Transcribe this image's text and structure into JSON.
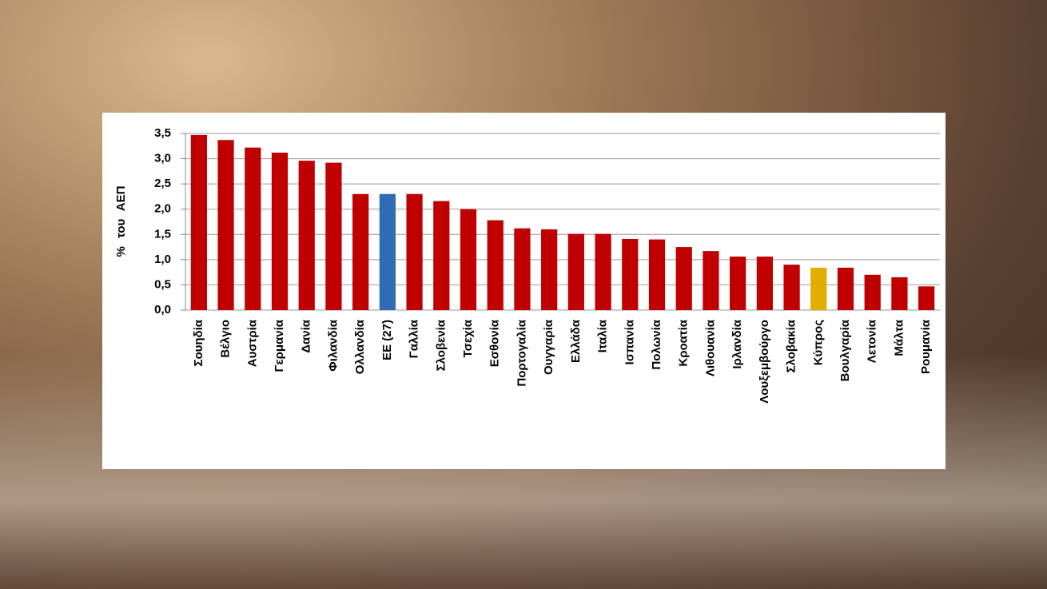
{
  "chart_data": {
    "type": "bar",
    "y_label": "% του ΑΕΠ",
    "categories": [
      "Σουηδία",
      "Βέλγιο",
      "Αυστρία",
      "Γερμανία",
      "Δανία",
      "Φιλανδία",
      "Ολλανδία",
      "ΕΕ (27)",
      "Γαλλία",
      "Σλοβενία",
      "Τσεχία",
      "Εσθονία",
      "Πορτογαλία",
      "Ουγγαρία",
      "Ελλάδα",
      "Ιταλία",
      "Ισπανία",
      "Πολωνία",
      "Κροατία",
      "Λιθουανία",
      "Ιρλανδία",
      "Λουξεμβούργο",
      "Σλοβακία",
      "Κύπρος",
      "Βουλγαρία",
      "Λετονία",
      "Μάλτα",
      "Ρουμανία"
    ],
    "values": [
      3.47,
      3.37,
      3.22,
      3.12,
      2.96,
      2.92,
      2.3,
      2.3,
      2.3,
      2.16,
      2.0,
      1.78,
      1.62,
      1.6,
      1.51,
      1.51,
      1.41,
      1.4,
      1.25,
      1.17,
      1.06,
      1.06,
      0.9,
      0.84,
      0.84,
      0.7,
      0.65,
      0.47
    ],
    "colors": [
      "#c00000",
      "#c00000",
      "#c00000",
      "#c00000",
      "#c00000",
      "#c00000",
      "#c00000",
      "#2e6cb5",
      "#c00000",
      "#c00000",
      "#c00000",
      "#c00000",
      "#c00000",
      "#c00000",
      "#c00000",
      "#c00000",
      "#c00000",
      "#c00000",
      "#c00000",
      "#c00000",
      "#c00000",
      "#c00000",
      "#c00000",
      "#e3ac00",
      "#c00000",
      "#c00000",
      "#c00000",
      "#c00000"
    ],
    "ylim": [
      0,
      3.5
    ],
    "yticks": [
      {
        "value": 0,
        "label": "0,0"
      },
      {
        "value": 0.5,
        "label": "0,5"
      },
      {
        "value": 1,
        "label": "1,0"
      },
      {
        "value": 1.5,
        "label": "1,5"
      },
      {
        "value": 2,
        "label": "2,0"
      },
      {
        "value": 2.5,
        "label": "2,5"
      },
      {
        "value": 3,
        "label": "3,0"
      },
      {
        "value": 3.5,
        "label": "3,5"
      }
    ],
    "grid": true
  }
}
